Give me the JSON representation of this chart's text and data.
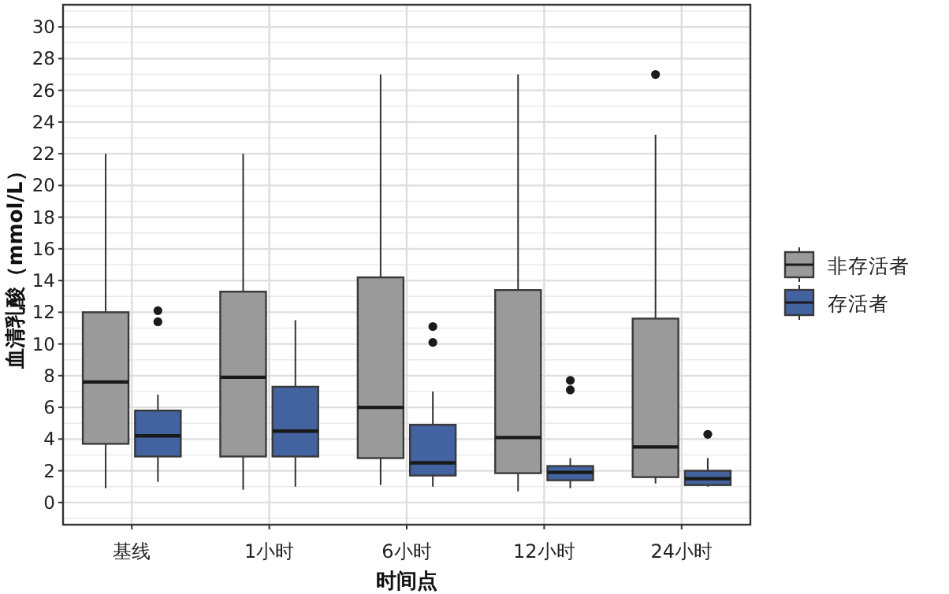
{
  "chart_data": {
    "type": "box",
    "xlabel": "时间点",
    "ylabel": "血清乳酸（mmol/L）",
    "categories": [
      "基线",
      "1小时",
      "6小时",
      "12小时",
      "24小时"
    ],
    "ylim": [
      -1.4,
      31.4
    ],
    "yticks": [
      0,
      2,
      4,
      6,
      8,
      10,
      12,
      14,
      16,
      18,
      20,
      22,
      24,
      26,
      28,
      30
    ],
    "grid": true,
    "legend": "right",
    "series": [
      {
        "name": "非存活者",
        "color": "#9a9a9a",
        "boxes": [
          {
            "low": 0.9,
            "q1": 3.7,
            "median": 7.6,
            "q3": 12.0,
            "high": 22.0
          },
          {
            "low": 0.8,
            "q1": 2.9,
            "median": 7.9,
            "q3": 13.3,
            "high": 22.0
          },
          {
            "low": 1.1,
            "q1": 2.8,
            "median": 6.0,
            "q3": 14.2,
            "high": 27.0
          },
          {
            "low": 0.7,
            "q1": 1.85,
            "median": 4.1,
            "q3": 13.4,
            "high": 27.0
          },
          {
            "low": 1.2,
            "q1": 1.6,
            "median": 3.5,
            "q3": 11.6,
            "high": 23.2,
            "outliers": [
              27.0
            ]
          }
        ]
      },
      {
        "name": "存活者",
        "color": "#4262a0",
        "boxes": [
          {
            "low": 1.3,
            "q1": 2.9,
            "median": 4.2,
            "q3": 5.8,
            "high": 6.8,
            "outliers": [
              11.4,
              12.1
            ]
          },
          {
            "low": 1.0,
            "q1": 2.9,
            "median": 4.5,
            "q3": 7.3,
            "high": 11.5
          },
          {
            "low": 1.0,
            "q1": 1.7,
            "median": 2.5,
            "q3": 4.9,
            "high": 7.0,
            "outliers": [
              10.1,
              11.1
            ]
          },
          {
            "low": 0.9,
            "q1": 1.4,
            "median": 1.9,
            "q3": 2.3,
            "high": 2.8,
            "outliers": [
              7.1,
              7.7
            ]
          },
          {
            "low": 1.0,
            "q1": 1.1,
            "median": 1.5,
            "q3": 2.0,
            "high": 2.8,
            "outliers": [
              4.3
            ]
          }
        ]
      }
    ]
  }
}
